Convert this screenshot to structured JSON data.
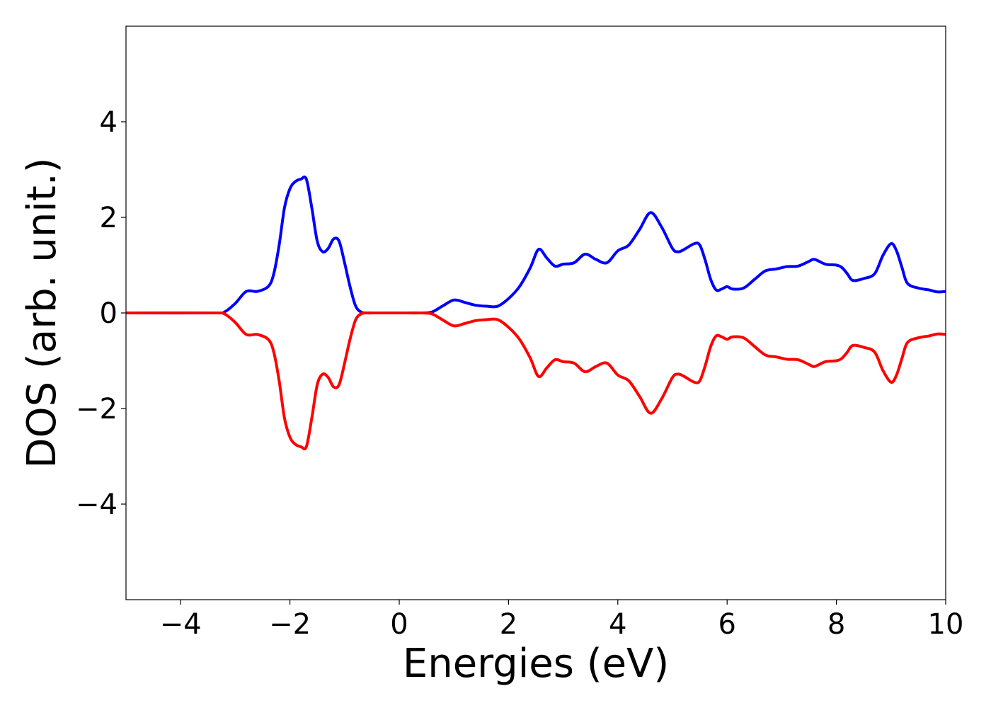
{
  "chart_data": {
    "type": "line",
    "title": "",
    "xlabel": "Energies (eV)",
    "ylabel": "DOS (arb. unit.)",
    "xlim": [
      -5,
      10
    ],
    "ylim": [
      -6,
      6
    ],
    "xticks": [
      -4,
      -2,
      0,
      2,
      4,
      6,
      8,
      10
    ],
    "xtick_labels": [
      "−4",
      "−2",
      "0",
      "2",
      "4",
      "6",
      "8",
      "10"
    ],
    "yticks": [
      -4,
      -2,
      0,
      2,
      4
    ],
    "ytick_labels": [
      "−4",
      "−2",
      "0",
      "2",
      "4"
    ],
    "grid": false,
    "legend": "none",
    "series": [
      {
        "color": "#0000ff",
        "x": [
          -5,
          -3.4,
          -3.2,
          -3.0,
          -2.8,
          -2.6,
          -2.4,
          -2.3,
          -2.2,
          -2.1,
          -2.0,
          -1.9,
          -1.8,
          -1.7,
          -1.6,
          -1.5,
          -1.4,
          -1.3,
          -1.2,
          -1.1,
          -1.0,
          -0.9,
          -0.8,
          -0.7,
          -0.6,
          -0.4,
          0,
          0.4,
          0.6,
          0.8,
          1.0,
          1.2,
          1.4,
          1.6,
          1.8,
          2.0,
          2.2,
          2.4,
          2.55,
          2.7,
          2.85,
          3.0,
          3.2,
          3.4,
          3.6,
          3.8,
          4.0,
          4.2,
          4.4,
          4.6,
          4.8,
          5.0,
          5.1,
          5.2,
          5.4,
          5.5,
          5.6,
          5.7,
          5.8,
          5.9,
          6.0,
          6.1,
          6.3,
          6.5,
          6.7,
          6.9,
          7.1,
          7.3,
          7.5,
          7.6,
          7.8,
          8.0,
          8.1,
          8.2,
          8.3,
          8.5,
          8.7,
          8.85,
          9.0,
          9.1,
          9.2,
          9.3,
          9.5,
          9.7,
          9.85,
          10.0
        ],
        "y": [
          0,
          0,
          0.02,
          0.2,
          0.45,
          0.45,
          0.55,
          0.8,
          1.4,
          2.2,
          2.6,
          2.75,
          2.8,
          2.8,
          2.2,
          1.5,
          1.28,
          1.35,
          1.55,
          1.5,
          1.05,
          0.55,
          0.15,
          0.02,
          0,
          0,
          0,
          0,
          0.02,
          0.15,
          0.27,
          0.22,
          0.16,
          0.14,
          0.14,
          0.3,
          0.55,
          0.95,
          1.33,
          1.15,
          0.98,
          1.02,
          1.05,
          1.23,
          1.12,
          1.05,
          1.3,
          1.42,
          1.75,
          2.1,
          1.8,
          1.35,
          1.28,
          1.32,
          1.45,
          1.42,
          1.1,
          0.7,
          0.48,
          0.5,
          0.55,
          0.5,
          0.52,
          0.7,
          0.88,
          0.92,
          0.97,
          0.98,
          1.08,
          1.12,
          1.02,
          1.0,
          0.95,
          0.82,
          0.68,
          0.72,
          0.82,
          1.2,
          1.45,
          1.3,
          0.95,
          0.62,
          0.52,
          0.48,
          0.44,
          0.45
        ]
      },
      {
        "color": "#ff0000",
        "x": [
          -5,
          -3.4,
          -3.2,
          -3.0,
          -2.8,
          -2.6,
          -2.4,
          -2.3,
          -2.2,
          -2.1,
          -2.0,
          -1.9,
          -1.8,
          -1.7,
          -1.6,
          -1.5,
          -1.4,
          -1.3,
          -1.2,
          -1.1,
          -1.0,
          -0.9,
          -0.8,
          -0.7,
          -0.6,
          -0.4,
          0,
          0.4,
          0.6,
          0.8,
          1.0,
          1.2,
          1.4,
          1.6,
          1.8,
          2.0,
          2.2,
          2.4,
          2.55,
          2.7,
          2.85,
          3.0,
          3.2,
          3.4,
          3.6,
          3.8,
          4.0,
          4.2,
          4.4,
          4.6,
          4.8,
          5.0,
          5.1,
          5.2,
          5.4,
          5.5,
          5.6,
          5.7,
          5.8,
          5.9,
          6.0,
          6.1,
          6.3,
          6.5,
          6.7,
          6.9,
          7.1,
          7.3,
          7.5,
          7.6,
          7.8,
          8.0,
          8.1,
          8.2,
          8.3,
          8.5,
          8.7,
          8.85,
          9.0,
          9.1,
          9.2,
          9.3,
          9.5,
          9.7,
          9.85,
          10.0
        ],
        "y": [
          0,
          0,
          -0.02,
          -0.2,
          -0.45,
          -0.45,
          -0.55,
          -0.8,
          -1.4,
          -2.2,
          -2.6,
          -2.75,
          -2.8,
          -2.8,
          -2.2,
          -1.5,
          -1.28,
          -1.35,
          -1.55,
          -1.5,
          -1.05,
          -0.55,
          -0.15,
          -0.02,
          0,
          0,
          0,
          0,
          -0.02,
          -0.15,
          -0.27,
          -0.22,
          -0.16,
          -0.14,
          -0.14,
          -0.3,
          -0.55,
          -0.95,
          -1.33,
          -1.15,
          -0.98,
          -1.02,
          -1.05,
          -1.23,
          -1.12,
          -1.05,
          -1.3,
          -1.42,
          -1.75,
          -2.1,
          -1.8,
          -1.35,
          -1.28,
          -1.32,
          -1.45,
          -1.42,
          -1.1,
          -0.7,
          -0.48,
          -0.5,
          -0.55,
          -0.5,
          -0.52,
          -0.7,
          -0.88,
          -0.92,
          -0.97,
          -0.98,
          -1.08,
          -1.12,
          -1.02,
          -1.0,
          -0.95,
          -0.82,
          -0.68,
          -0.72,
          -0.82,
          -1.2,
          -1.45,
          -1.3,
          -0.95,
          -0.62,
          -0.52,
          -0.48,
          -0.44,
          -0.45
        ]
      }
    ]
  }
}
